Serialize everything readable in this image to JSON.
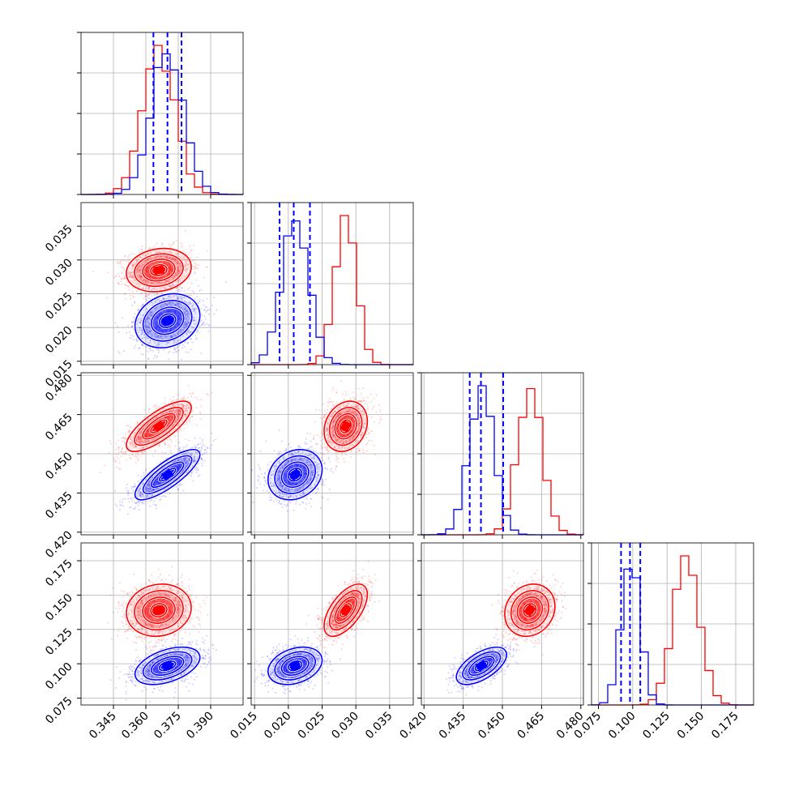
{
  "chart_data": {
    "type": "corner",
    "parameters": 4,
    "colors": {
      "series_a": "#ff0000",
      "series_b": "#0000ff"
    },
    "grid": true,
    "quantile_lines_color": "#0000ff",
    "axes": [
      {
        "range": [
          0.33,
          0.405
        ],
        "ticks": [
          "0.345",
          "0.360",
          "0.375",
          "0.390"
        ],
        "tick_values": [
          0.345,
          0.36,
          0.375,
          0.39
        ]
      },
      {
        "range": [
          0.0145,
          0.0385
        ],
        "ticks": [
          "0.015",
          "0.020",
          "0.025",
          "0.030",
          "0.035"
        ],
        "tick_values": [
          0.015,
          0.02,
          0.025,
          0.03,
          0.035
        ]
      },
      {
        "range": [
          0.419,
          0.481
        ],
        "ticks": [
          "0.420",
          "0.435",
          "0.450",
          "0.465",
          "0.480"
        ],
        "tick_values": [
          0.42,
          0.435,
          0.45,
          0.465,
          0.48
        ]
      },
      {
        "range": [
          0.07,
          0.188
        ],
        "ticks": [
          "0.075",
          "0.100",
          "0.125",
          "0.150",
          "0.175"
        ],
        "tick_values": [
          0.075,
          0.1,
          0.125,
          0.15,
          0.175
        ]
      }
    ],
    "series": [
      {
        "name": "",
        "color": "#ff0000",
        "mean": [
          0.366,
          0.0285,
          0.4605,
          0.139
        ],
        "sd": [
          0.0075,
          0.0016,
          0.0048,
          0.0095
        ]
      },
      {
        "name": "",
        "color": "#0000ff",
        "mean": [
          0.37,
          0.021,
          0.442,
          0.0985
        ],
        "sd": [
          0.0075,
          0.002,
          0.0048,
          0.0068
        ]
      }
    ],
    "correlations": [
      {
        "pair": [
          0,
          1
        ],
        "series_a": 0.15,
        "series_b": 0.2
      },
      {
        "pair": [
          0,
          2
        ],
        "series_a": 0.75,
        "series_b": 0.8
      },
      {
        "pair": [
          1,
          2
        ],
        "series_a": 0.2,
        "series_b": 0.2
      },
      {
        "pair": [
          0,
          3
        ],
        "series_a": 0.1,
        "series_b": 0.45
      },
      {
        "pair": [
          1,
          3
        ],
        "series_a": 0.6,
        "series_b": 0.3
      },
      {
        "pair": [
          2,
          3
        ],
        "series_a": 0.15,
        "series_b": 0.6
      }
    ],
    "quantile_lines": [
      [
        0.3635,
        0.37,
        0.3765
      ],
      [
        0.0187,
        0.0208,
        0.0232
      ],
      [
        0.4375,
        0.4418,
        0.4503
      ],
      [
        0.0915,
        0.098,
        0.1055
      ]
    ]
  }
}
